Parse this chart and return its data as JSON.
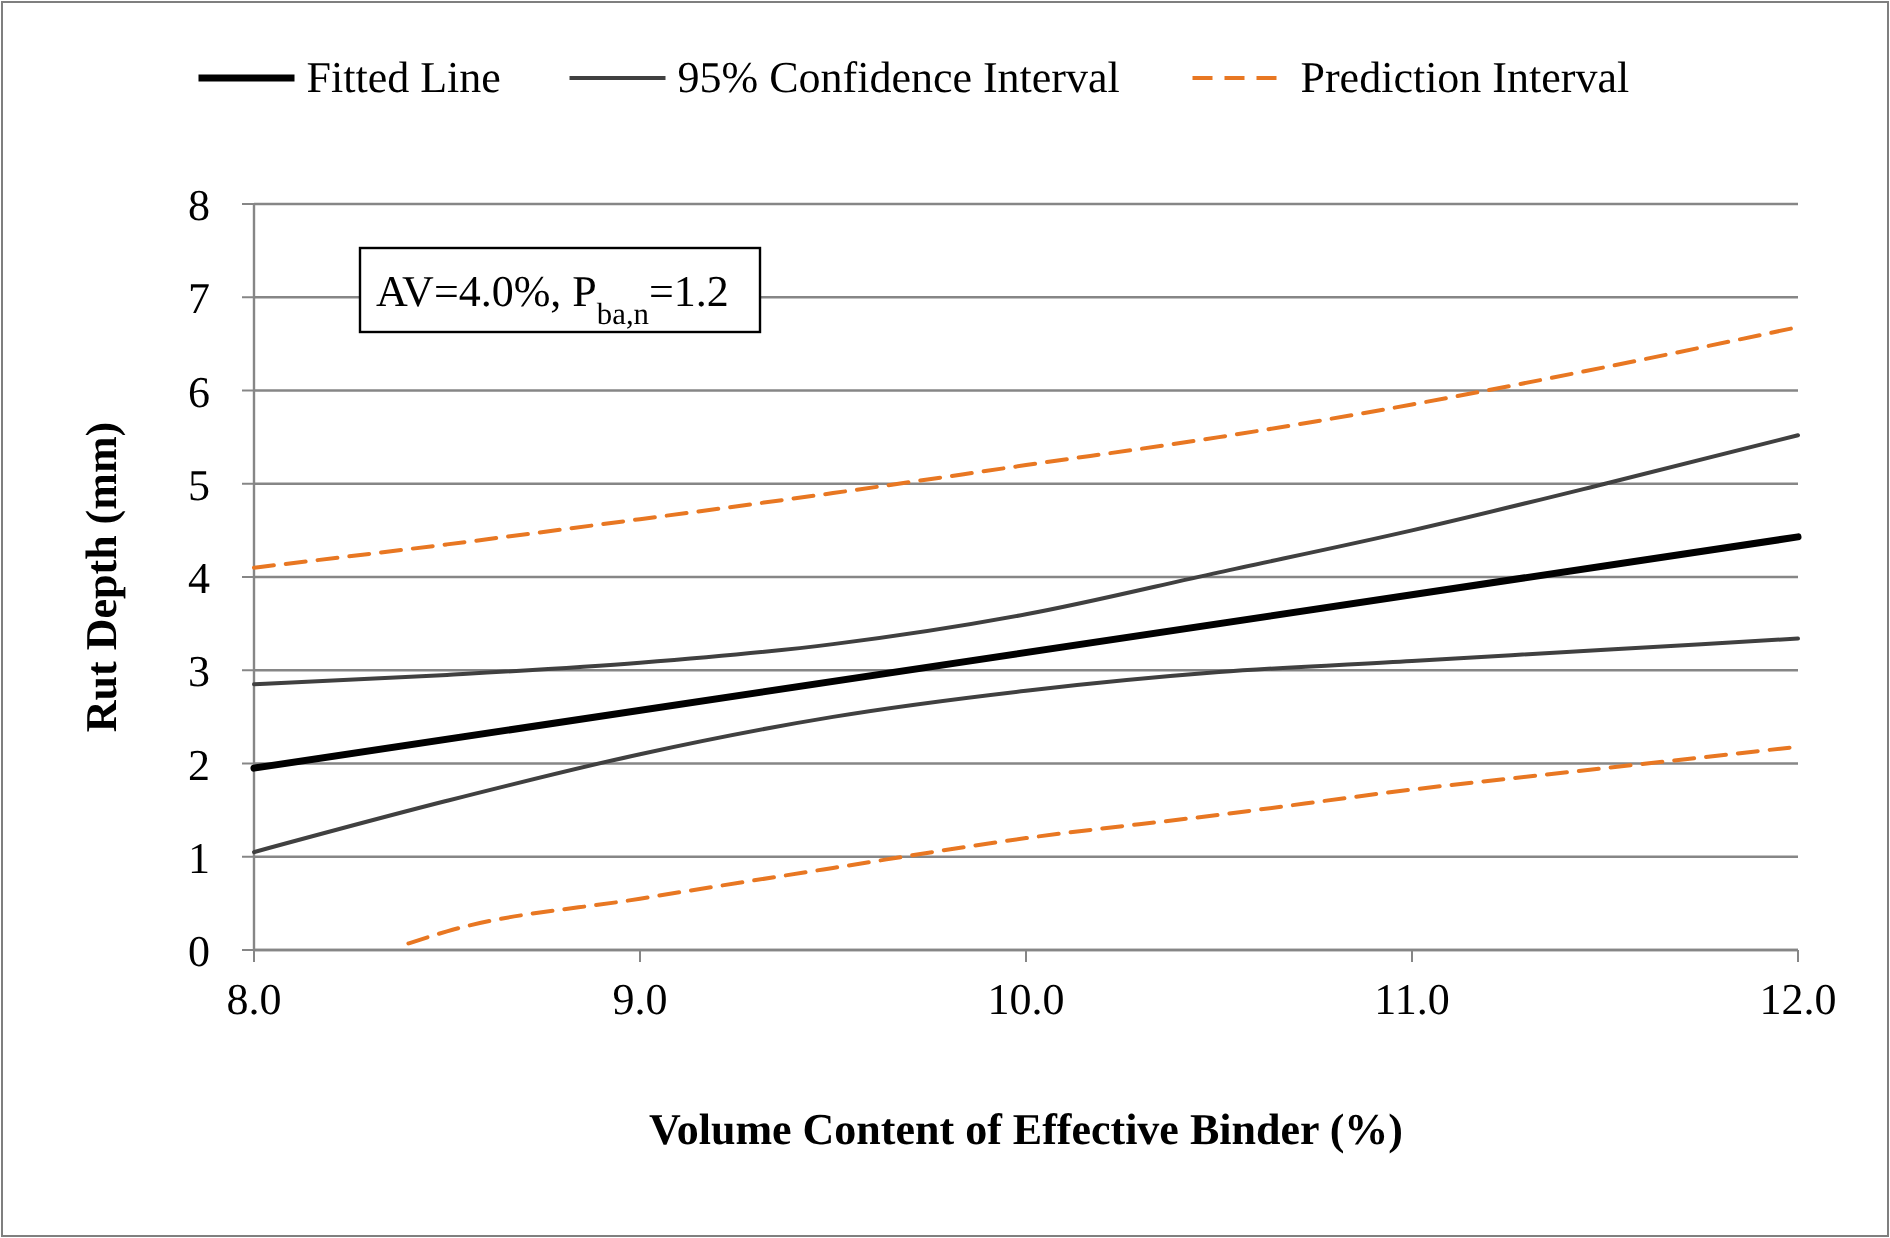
{
  "chart_data": {
    "type": "line",
    "xlabel": "Volume Content  of Effective Binder (%)",
    "ylabel": "Rut Depth (mm)",
    "xlim": [
      8,
      12
    ],
    "xticks": [
      {
        "value": 8,
        "label": "8.0"
      },
      {
        "value": 9,
        "label": "9.0"
      },
      {
        "value": 10,
        "label": "10.0"
      },
      {
        "value": 11,
        "label": "11.0"
      },
      {
        "value": 12,
        "label": "12.0"
      }
    ],
    "ylim": [
      0,
      8
    ],
    "yticks": [
      0,
      1,
      2,
      3,
      4,
      5,
      6,
      7,
      8
    ],
    "grid": "y",
    "legend": "top",
    "marker": "none",
    "annotations": [
      "AV=4.0%, P$_{ba,n}$=1.2"
    ],
    "series": [
      {
        "name": "Fitted Line",
        "color": "#000000",
        "line_style": "solid",
        "x": [
          8,
          12
        ],
        "values": [
          1.95,
          4.43
        ]
      },
      {
        "name": "95% Confidence Interval",
        "color": "#404040",
        "line_style": "solid",
        "x": [
          8,
          8.5,
          9,
          9.5,
          10,
          10.5,
          11,
          11.5,
          12
        ],
        "values": [
          2.85,
          2.95,
          3.08,
          3.28,
          3.6,
          4.05,
          4.5,
          5.0,
          5.52
        ]
      },
      {
        "color": "#404040",
        "line_style": "solid",
        "x": [
          8,
          8.5,
          9,
          9.5,
          10,
          10.5,
          11,
          11.5,
          12
        ],
        "values": [
          1.05,
          1.6,
          2.1,
          2.5,
          2.78,
          2.98,
          3.1,
          3.22,
          3.34
        ]
      },
      {
        "name": "Prediction Interval",
        "color": "#e87722",
        "line_style": "dashed",
        "x": [
          8,
          8.5,
          9,
          9.5,
          10,
          10.5,
          11,
          11.5,
          12
        ],
        "values": [
          4.1,
          4.35,
          4.62,
          4.9,
          5.2,
          5.5,
          5.85,
          6.25,
          6.68
        ]
      },
      {
        "color": "#e87722",
        "line_style": "dashed",
        "x": [
          8.4,
          8.5,
          9,
          9.5,
          10,
          10.5,
          11,
          11.5,
          12
        ],
        "values": [
          0.07,
          0.2,
          0.55,
          0.88,
          1.2,
          1.45,
          1.72,
          1.95,
          2.18
        ]
      }
    ]
  }
}
